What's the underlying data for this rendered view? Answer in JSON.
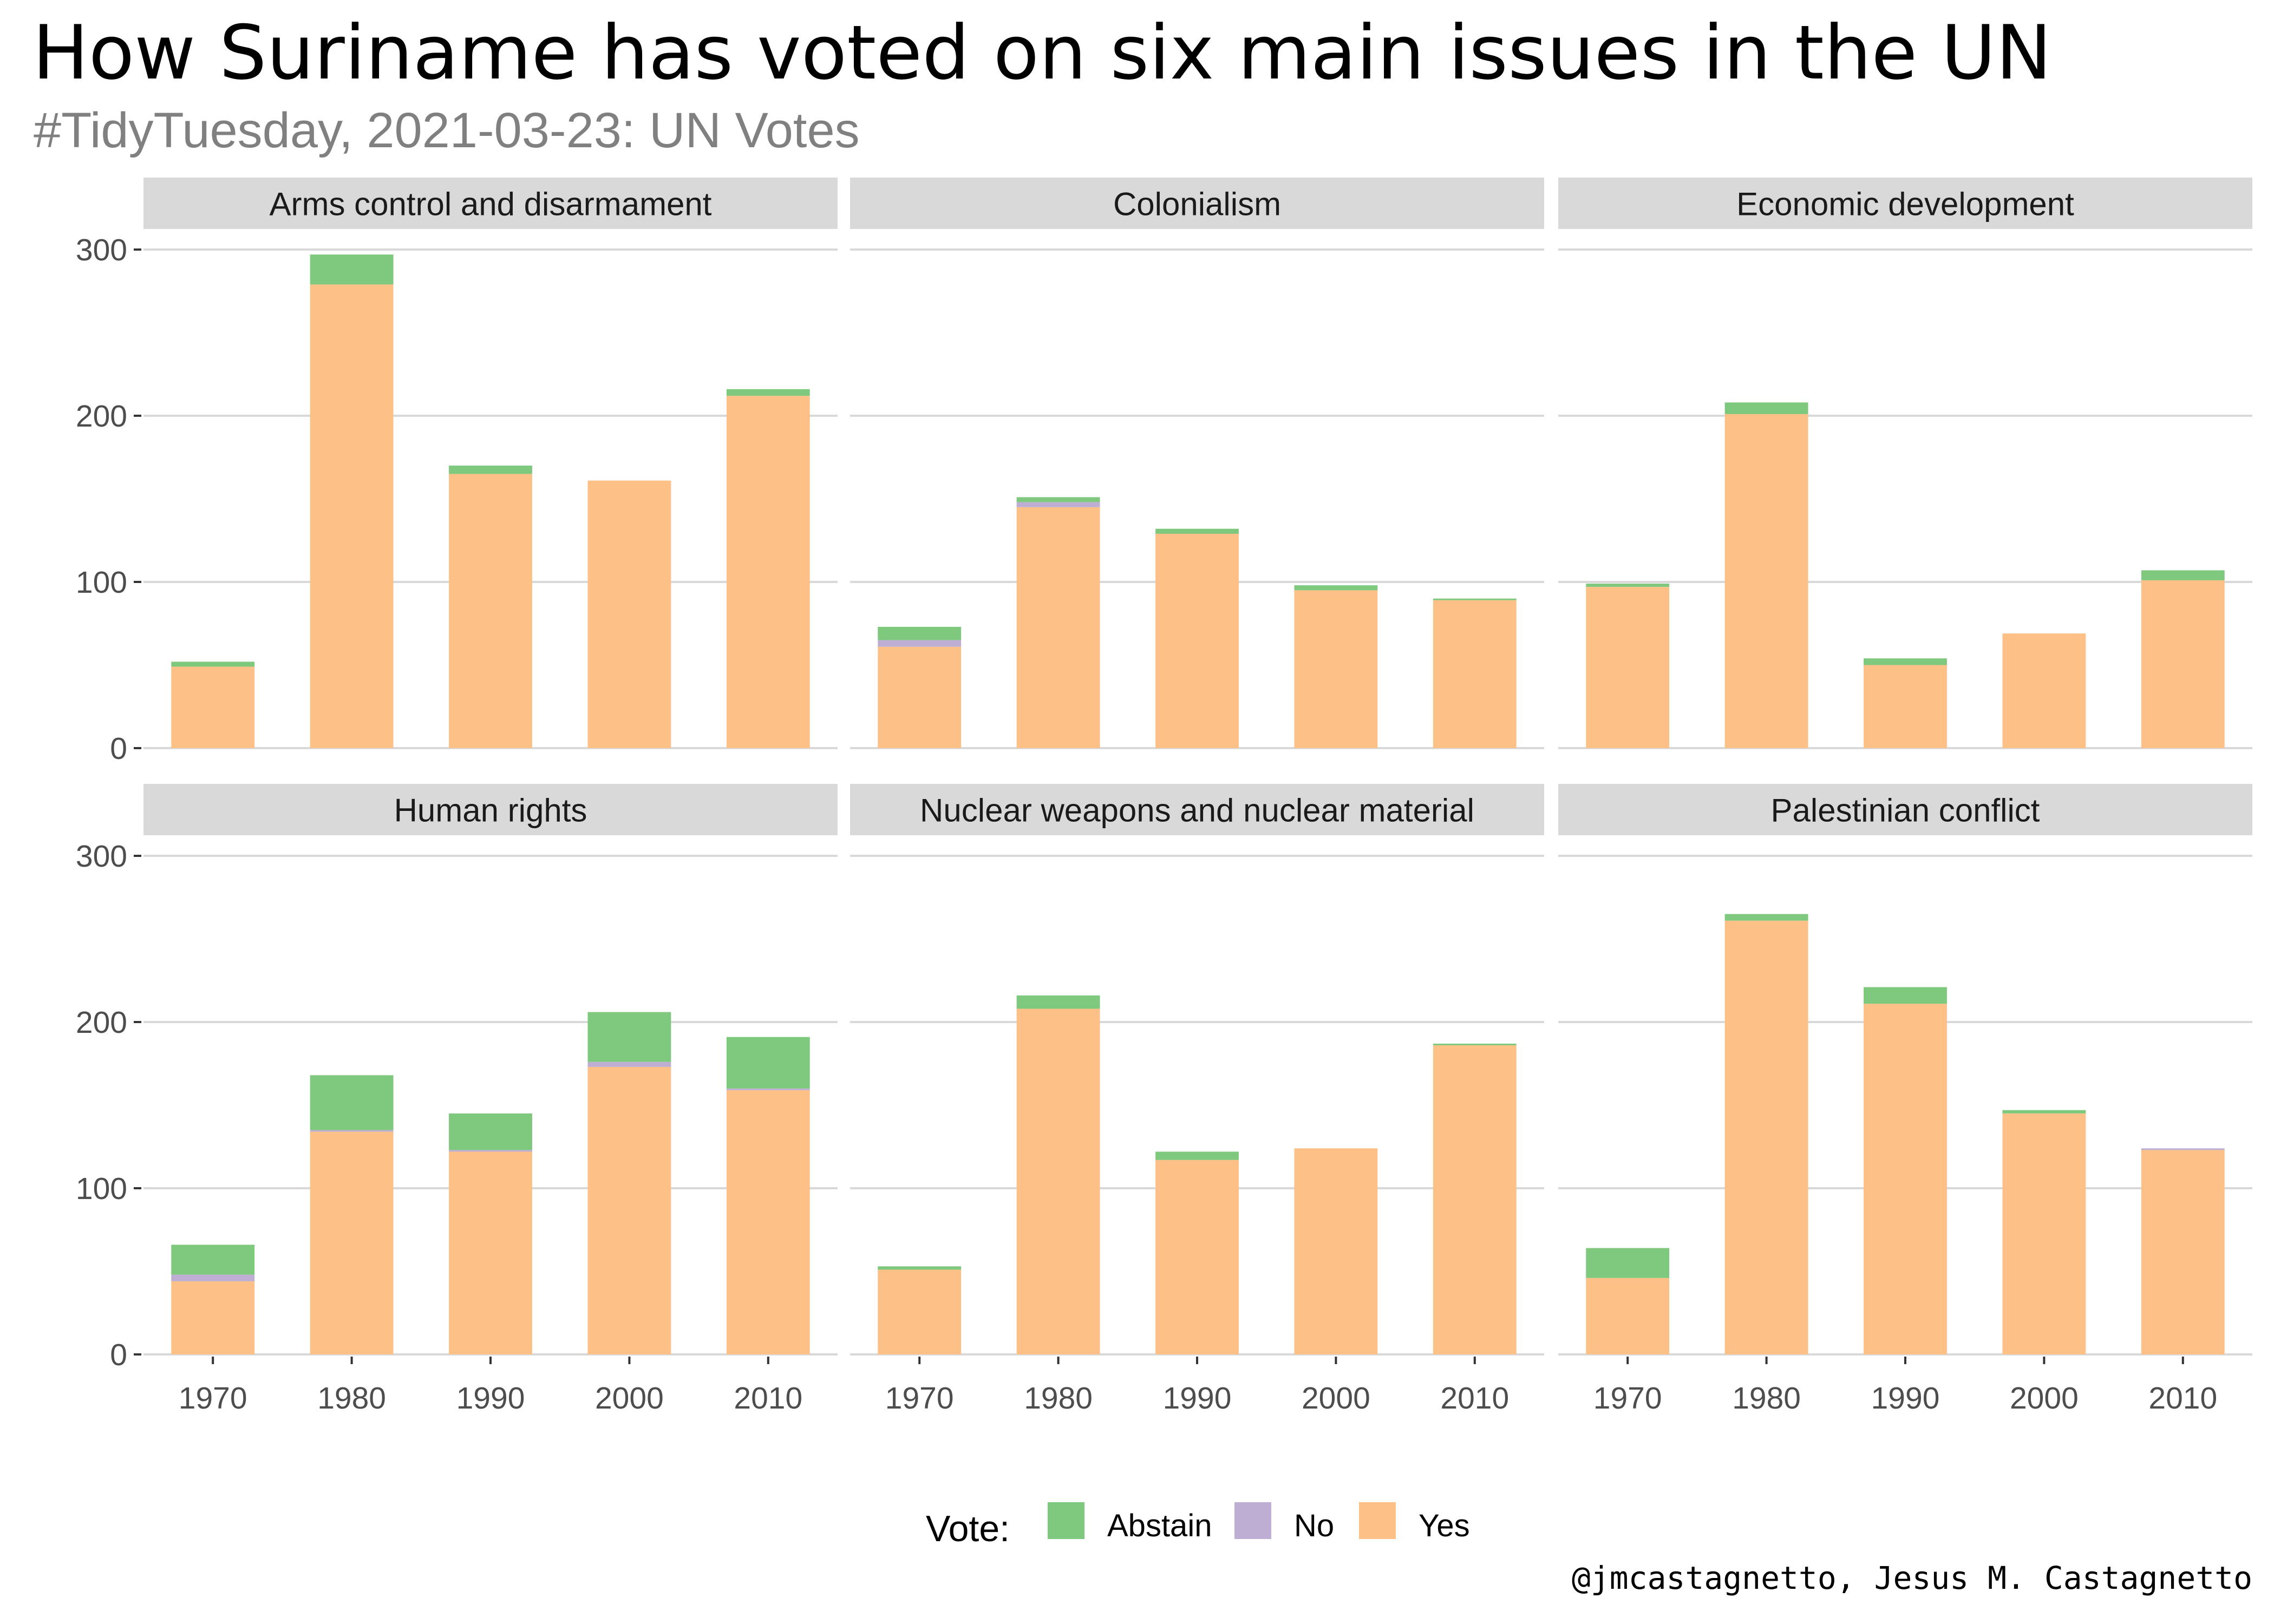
{
  "title": "How Suriname has voted on six main issues in the UN",
  "subtitle": "#TidyTuesday, 2021-03-23: UN Votes",
  "caption": "@jmcastagnetto, Jesus M. Castagnetto",
  "legend": {
    "title": "Vote:",
    "placement": "bottom",
    "items": [
      {
        "name": "Abstain",
        "color": "#7fc97f"
      },
      {
        "name": "No",
        "color": "#beaed4"
      },
      {
        "name": "Yes",
        "color": "#fdc086"
      }
    ]
  },
  "colors": {
    "strip_bg": "#d9d9d9",
    "grid": "#d9d9d9",
    "title": "#000000",
    "subtitle": "#808080",
    "tick": "#4d4d4d"
  },
  "chart_data": {
    "type": "bar",
    "stacked": true,
    "facets": 6,
    "layout": "2 rows x 3 columns",
    "x": [
      "1970",
      "1980",
      "1990",
      "2000",
      "2010"
    ],
    "y_ticks": [
      0,
      100,
      200,
      300
    ],
    "ylim": [
      0,
      300
    ],
    "grid": "horizontal major",
    "panels": [
      {
        "name": "Arms control and disarmament",
        "series": [
          {
            "name": "Yes",
            "values": [
              49,
              279,
              165,
              161,
              212
            ]
          },
          {
            "name": "No",
            "values": [
              0,
              0,
              0,
              0,
              0
            ]
          },
          {
            "name": "Abstain",
            "values": [
              3,
              18,
              5,
              0,
              4
            ]
          }
        ]
      },
      {
        "name": "Colonialism",
        "series": [
          {
            "name": "Yes",
            "values": [
              61,
              145,
              129,
              95,
              89
            ]
          },
          {
            "name": "No",
            "values": [
              4,
              3,
              0,
              0,
              0
            ]
          },
          {
            "name": "Abstain",
            "values": [
              8,
              3,
              3,
              3,
              1
            ]
          }
        ]
      },
      {
        "name": "Economic development",
        "series": [
          {
            "name": "Yes",
            "values": [
              97,
              201,
              50,
              69,
              101
            ]
          },
          {
            "name": "No",
            "values": [
              0,
              0,
              0,
              0,
              0
            ]
          },
          {
            "name": "Abstain",
            "values": [
              2,
              7,
              4,
              0,
              6
            ]
          }
        ]
      },
      {
        "name": "Human rights",
        "series": [
          {
            "name": "Yes",
            "values": [
              44,
              134,
              122,
              173,
              159
            ]
          },
          {
            "name": "No",
            "values": [
              4,
              1,
              1,
              3,
              1
            ]
          },
          {
            "name": "Abstain",
            "values": [
              18,
              33,
              22,
              30,
              31
            ]
          }
        ]
      },
      {
        "name": "Nuclear weapons and nuclear material",
        "series": [
          {
            "name": "Yes",
            "values": [
              51,
              208,
              117,
              124,
              186
            ]
          },
          {
            "name": "No",
            "values": [
              0,
              0,
              0,
              0,
              0
            ]
          },
          {
            "name": "Abstain",
            "values": [
              2,
              8,
              5,
              0,
              1
            ]
          }
        ]
      },
      {
        "name": "Palestinian conflict",
        "series": [
          {
            "name": "Yes",
            "values": [
              46,
              261,
              211,
              145,
              123
            ]
          },
          {
            "name": "No",
            "values": [
              0,
              0,
              0,
              0,
              1
            ]
          },
          {
            "name": "Abstain",
            "values": [
              18,
              4,
              10,
              2,
              0
            ]
          }
        ]
      }
    ]
  }
}
